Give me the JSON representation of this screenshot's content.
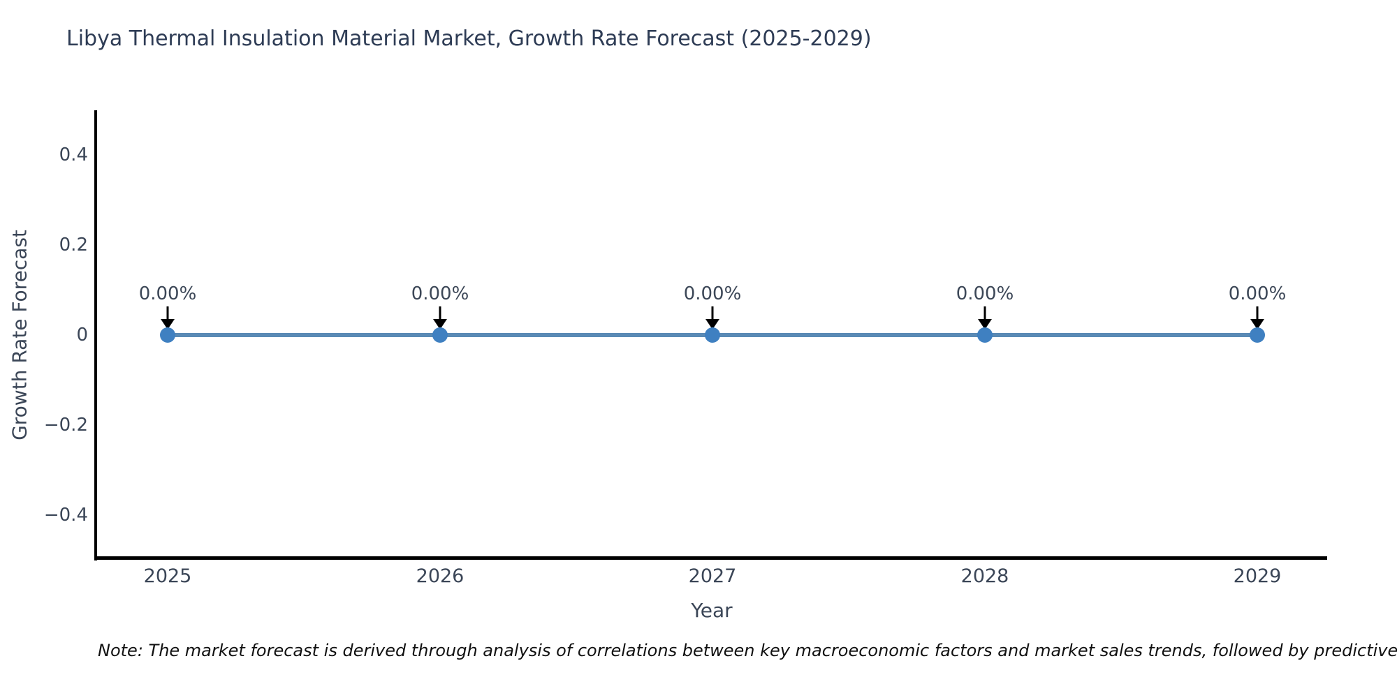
{
  "chart_data": {
    "type": "line",
    "title": "Libya Thermal Insulation Material Market, Growth Rate Forecast (2025-2029)",
    "xlabel": "Year",
    "ylabel": "Growth Rate Forecast",
    "categories": [
      "2025",
      "2026",
      "2027",
      "2028",
      "2029"
    ],
    "series": [
      {
        "name": "Growth Rate Forecast",
        "values": [
          0,
          0,
          0,
          0,
          0
        ],
        "point_labels": [
          "0.00%",
          "0.00%",
          "0.00%",
          "0.00%",
          "0.00%"
        ]
      }
    ],
    "ylim": [
      -0.5,
      0.5
    ],
    "yticks": [
      {
        "value": 0.4,
        "label": "0.4"
      },
      {
        "value": 0.2,
        "label": "0.2"
      },
      {
        "value": 0,
        "label": "0"
      },
      {
        "value": -0.2,
        "label": "−0.2"
      },
      {
        "value": -0.4,
        "label": "−0.4"
      }
    ],
    "grid": false,
    "legend": false,
    "colors": {
      "line": "#5a8ab5",
      "marker": "#3f80c1",
      "axis": "#000000",
      "title_text": "#2e3c55",
      "tick_text": "#3b4657",
      "annotation_arrow": "#000000"
    }
  },
  "footnote": "Note: The market forecast is derived through analysis of correlations between key macroeconomic factors and market sales trends, followed by predictive modeling to project future sales."
}
